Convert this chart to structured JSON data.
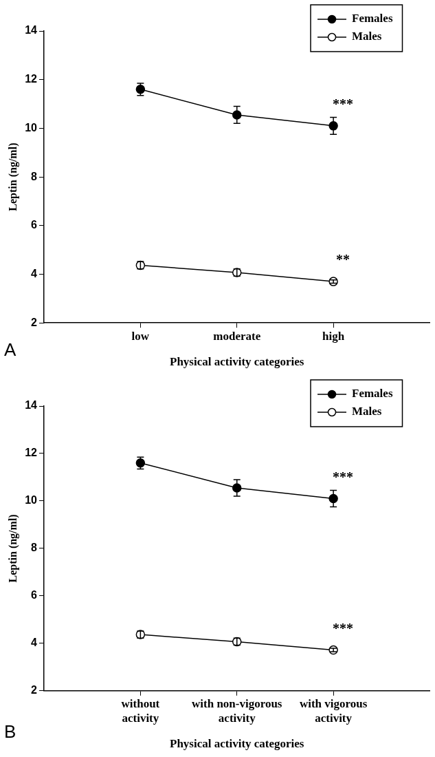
{
  "chart_data": [
    {
      "type": "line",
      "xlabel": "Physical activity categories",
      "ylabel": "Leptin (ng/ml)",
      "categories": [
        "low",
        "moderate",
        "high"
      ],
      "series": [
        {
          "name": "Females",
          "color": "#000000",
          "values": [
            11.6,
            10.55,
            10.1
          ],
          "errors": [
            0.25,
            0.35,
            0.35
          ]
        },
        {
          "name": "Males",
          "color": "#ffffff",
          "values": [
            4.37,
            4.07,
            3.7
          ],
          "errors": [
            0.15,
            0.15,
            0.07
          ]
        }
      ],
      "ylim": [
        2,
        14
      ],
      "yticks": [
        2,
        4,
        6,
        8,
        10,
        12,
        14
      ],
      "legend": "top right",
      "marker": "circle",
      "line_style": "solid",
      "annotations": [
        {
          "text": "***",
          "x": "high",
          "y": 10.1
        },
        {
          "text": "**",
          "x": "high",
          "y": 3.7
        },
        "A"
      ]
    },
    {
      "type": "line",
      "xlabel": "Physical activity categories",
      "ylabel": "Leptin (ng/ml)",
      "categories": [
        "without activity",
        "with non-vigorous activity",
        "with vigorous activity"
      ],
      "series": [
        {
          "name": "Females",
          "color": "#000000",
          "values": [
            11.6,
            10.55,
            10.1
          ],
          "errors": [
            0.25,
            0.35,
            0.35
          ]
        },
        {
          "name": "Males",
          "color": "#ffffff",
          "values": [
            4.37,
            4.07,
            3.72
          ],
          "errors": [
            0.15,
            0.15,
            0.07
          ]
        }
      ],
      "ylim": [
        2,
        14
      ],
      "yticks": [
        2,
        4,
        6,
        8,
        10,
        12,
        14
      ],
      "legend": "top right",
      "marker": "circle",
      "line_style": "solid",
      "annotations": [
        {
          "text": "***",
          "x": "with vigorous activity",
          "y": 10.1
        },
        {
          "text": "***",
          "x": "with vigorous activity",
          "y": 3.72
        },
        "B"
      ]
    }
  ]
}
